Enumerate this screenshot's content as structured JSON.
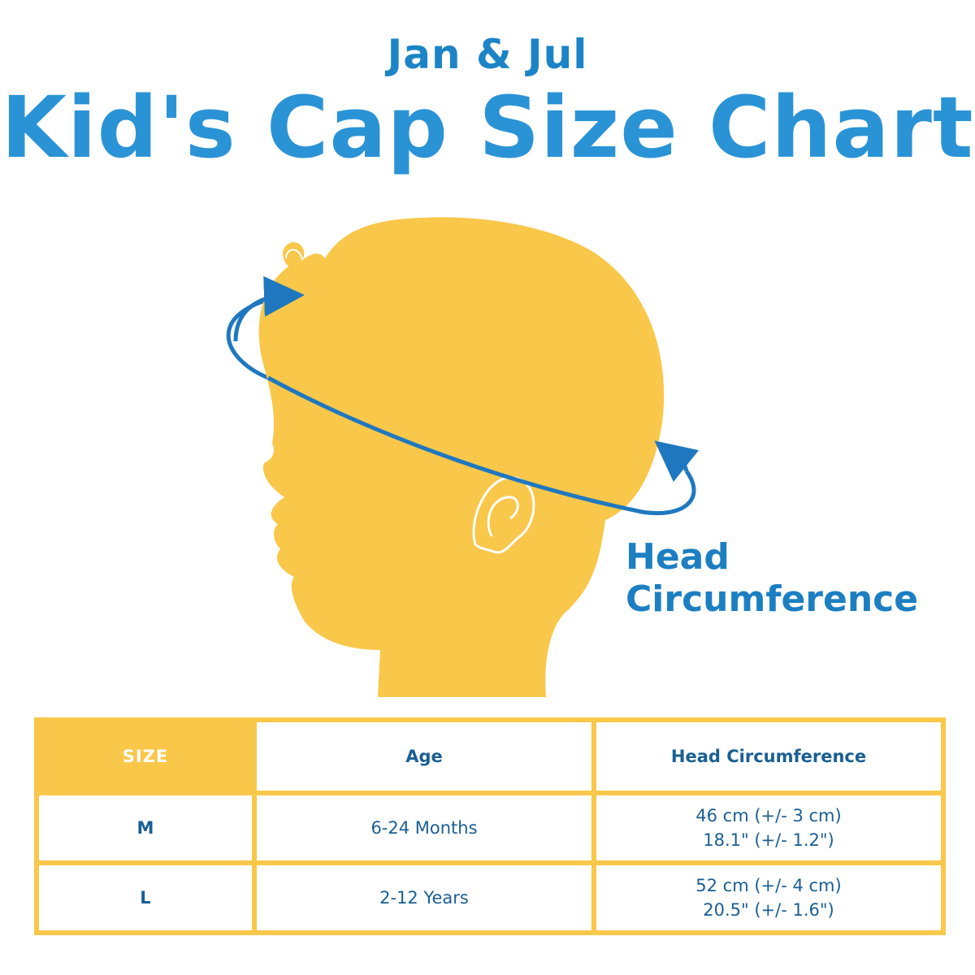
{
  "header": {
    "brand": "Jan & Jul",
    "title": "Kid's Cap Size Chart"
  },
  "illustration": {
    "annotation_line1": "Head",
    "annotation_line2": "Circumference",
    "silhouette_color": "#f9c74a",
    "arrow_color": "#1f78bf"
  },
  "table": {
    "headers": [
      "SIZE",
      "Age",
      "Head Circumference"
    ],
    "rows": [
      {
        "size": "M",
        "age": "6-24 Months",
        "circumference_cm": "46 cm (+/- 3 cm)",
        "circumference_in": "18.1\" (+/- 1.2\")"
      },
      {
        "size": "L",
        "age": "2-12 Years",
        "circumference_cm": "52 cm (+/- 4 cm)",
        "circumference_in": "20.5\" (+/- 1.6\")"
      }
    ],
    "border_color": "#f9c74a",
    "text_color": "#1a5f93"
  }
}
